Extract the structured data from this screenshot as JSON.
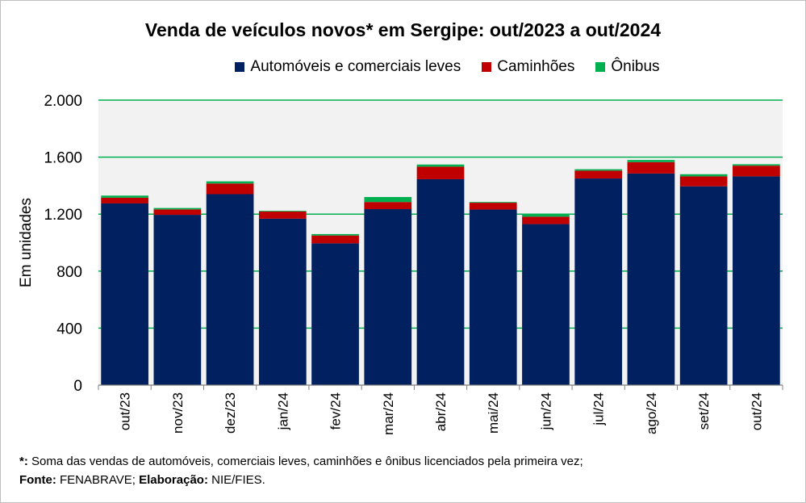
{
  "chart_data": {
    "type": "bar",
    "stacked": true,
    "title": "Venda de veículos novos* em Sergipe: out/2023 a out/2024",
    "xlabel": "",
    "ylabel": "Em unidades",
    "ylim": [
      0,
      2000
    ],
    "yticks": [
      0,
      400,
      800,
      1200,
      1600,
      2000
    ],
    "ytick_labels": [
      "0",
      "400",
      "800",
      "1.200",
      "1.600",
      "2.000"
    ],
    "grid": true,
    "legend_position": "top",
    "categories": [
      "out/23",
      "nov/23",
      "dez/23",
      "jan/24",
      "fev/24",
      "mar/24",
      "abr/24",
      "mai/24",
      "jun/24",
      "jul/24",
      "ago/24",
      "set/24",
      "out/24"
    ],
    "series": [
      {
        "name": "Automóveis e comerciais leves",
        "color": "#002060",
        "values": [
          1275,
          1195,
          1340,
          1168,
          995,
          1235,
          1445,
          1232,
          1130,
          1450,
          1485,
          1395,
          1465
        ]
      },
      {
        "name": "Caminhões",
        "color": "#c00000",
        "values": [
          40,
          38,
          75,
          50,
          55,
          50,
          88,
          48,
          52,
          55,
          80,
          70,
          75
        ]
      },
      {
        "name": "Ônibus",
        "color": "#00b050",
        "values": [
          15,
          10,
          15,
          5,
          10,
          35,
          15,
          5,
          15,
          10,
          15,
          15,
          10
        ]
      }
    ]
  },
  "footnote": {
    "marker": "*:",
    "text": " Soma das vendas de automóveis, comerciais leves, caminhões e ônibus licenciados pela primeira vez;"
  },
  "source": {
    "fonte_label": "Fonte:",
    "fonte_text": " FENABRAVE; ",
    "elab_label": "Elaboração:",
    "elab_text": " NIE/FIES."
  }
}
